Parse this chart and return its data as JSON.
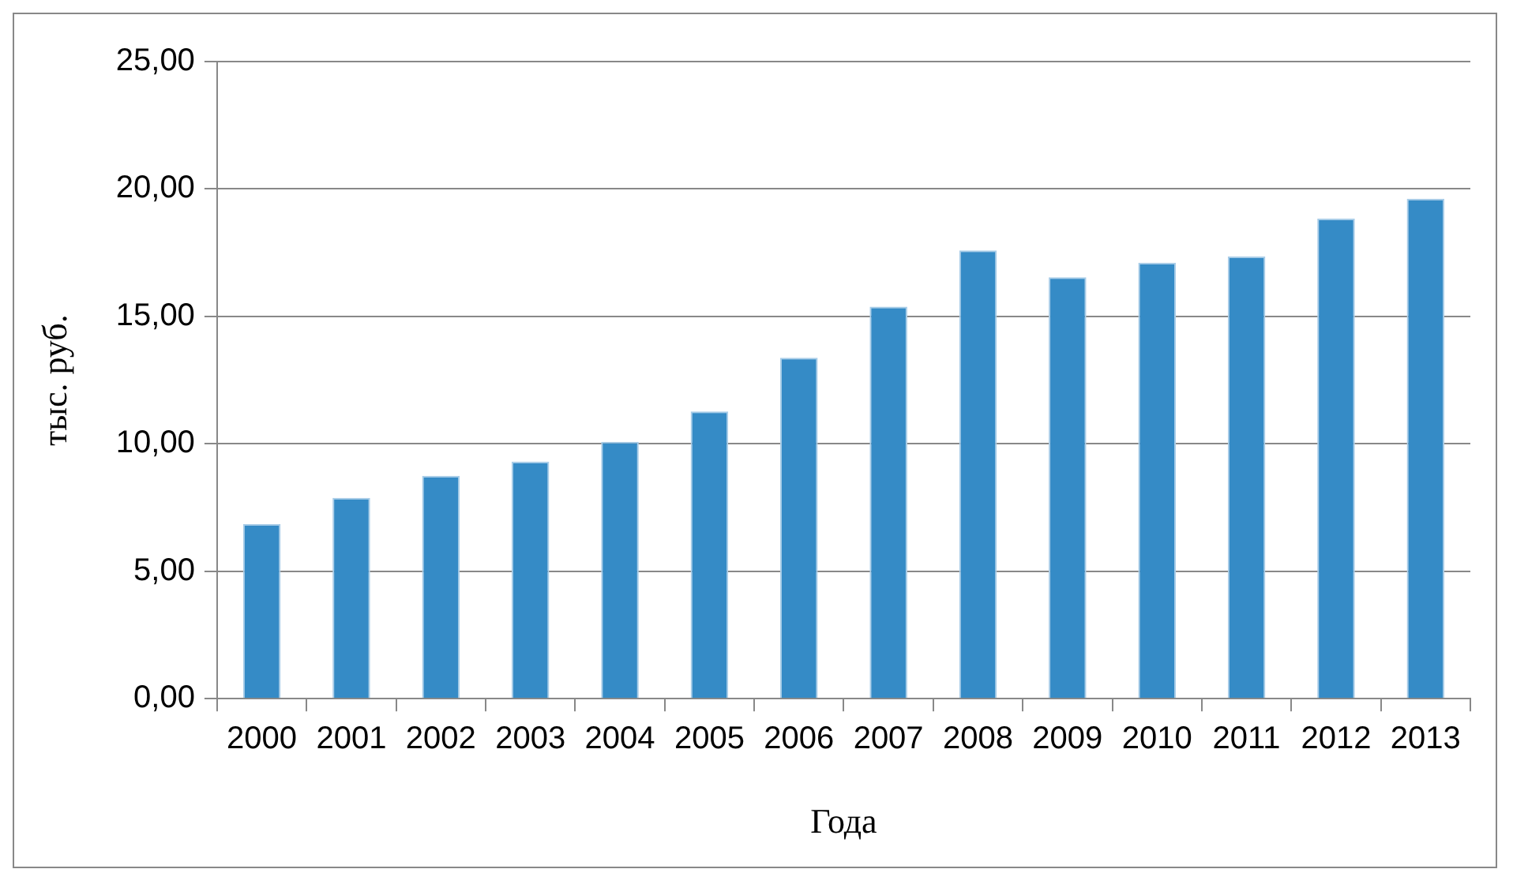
{
  "chart_data": {
    "type": "bar",
    "xlabel": "Года",
    "ylabel": "тыс. руб.",
    "categories": [
      "2000",
      "2001",
      "2002",
      "2003",
      "2004",
      "2005",
      "2006",
      "2007",
      "2008",
      "2009",
      "2010",
      "2011",
      "2012",
      "2013"
    ],
    "values": [
      6.85,
      7.88,
      8.74,
      9.3,
      10.08,
      11.27,
      13.38,
      15.38,
      17.59,
      16.54,
      17.1,
      17.35,
      18.84,
      19.62
    ],
    "color": "#358bc6",
    "ylim": [
      0,
      25
    ],
    "yticks": [
      {
        "value": 0,
        "label": "0,00"
      },
      {
        "value": 5,
        "label": "5,00"
      },
      {
        "value": 10,
        "label": "10,00"
      },
      {
        "value": 15,
        "label": "15,00"
      },
      {
        "value": 20,
        "label": "20,00"
      },
      {
        "value": 25,
        "label": "25,00"
      }
    ],
    "grid": "y",
    "legend": false
  }
}
